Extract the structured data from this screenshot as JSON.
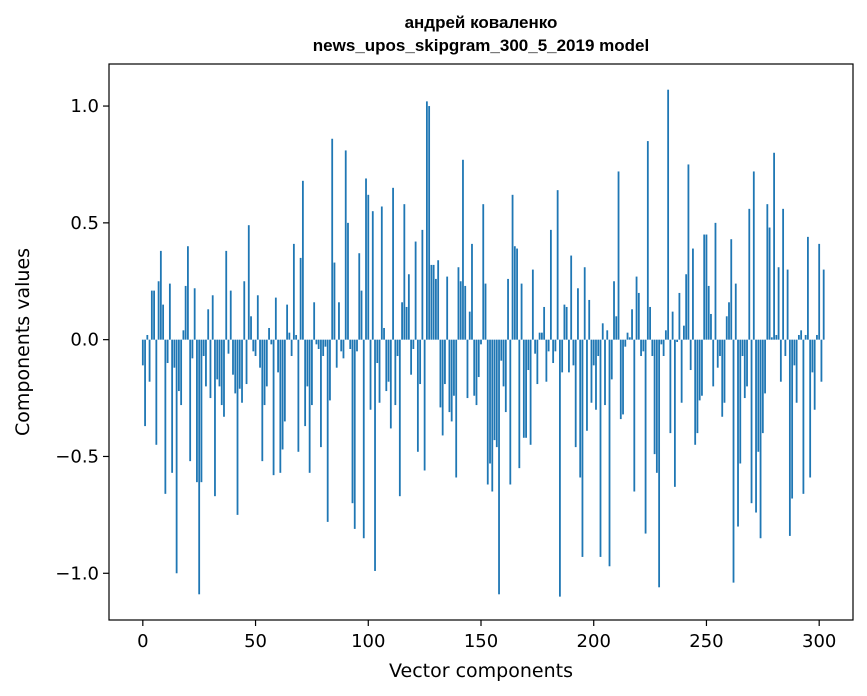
{
  "chart_data": {
    "type": "bar",
    "title_line1": "андрей коваленко",
    "title_line2": "news_upos_skipgram_300_5_2019 model",
    "xlabel": "Vector components",
    "ylabel": "Components values",
    "xlim": [
      -15,
      315
    ],
    "ylim": [
      -1.2,
      1.18
    ],
    "xticks": [
      0,
      50,
      100,
      150,
      200,
      250,
      300
    ],
    "xtick_labels": [
      "0",
      "50",
      "100",
      "150",
      "200",
      "250",
      "300"
    ],
    "yticks": [
      -1.0,
      -0.5,
      0.0,
      0.5,
      1.0
    ],
    "ytick_labels": [
      "−1.0",
      "−0.5",
      "0.0",
      "0.5",
      "1.0"
    ],
    "bar_color": "#1f77b4",
    "values": [
      -0.11,
      -0.37,
      0.02,
      -0.18,
      0.21,
      0.21,
      -0.45,
      0.25,
      0.38,
      0.15,
      -0.66,
      -0.1,
      0.24,
      -0.57,
      -0.12,
      -1.0,
      -0.22,
      -0.28,
      0.04,
      0.23,
      0.4,
      -0.52,
      -0.08,
      0.22,
      -0.61,
      -1.09,
      -0.61,
      -0.07,
      -0.2,
      0.13,
      -0.25,
      0.19,
      -0.67,
      -0.17,
      -0.2,
      -0.28,
      -0.33,
      0.38,
      -0.06,
      0.21,
      -0.15,
      -0.23,
      -0.75,
      -0.21,
      -0.27,
      0.25,
      -0.19,
      0.49,
      0.1,
      -0.05,
      -0.07,
      0.19,
      -0.12,
      -0.52,
      -0.28,
      -0.2,
      0.05,
      -0.02,
      -0.58,
      0.18,
      -0.14,
      -0.57,
      -0.47,
      -0.35,
      0.15,
      0.03,
      -0.07,
      0.41,
      0.02,
      -0.48,
      0.35,
      0.68,
      -0.37,
      -0.2,
      -0.57,
      -0.28,
      0.16,
      -0.02,
      -0.04,
      -0.46,
      -0.07,
      -0.03,
      -0.78,
      -0.26,
      0.86,
      0.33,
      -0.12,
      0.16,
      -0.05,
      -0.08,
      0.81,
      0.5,
      -0.04,
      -0.7,
      -0.81,
      -0.05,
      0.37,
      0.21,
      -0.85,
      0.69,
      0.62,
      -0.3,
      0.55,
      -0.99,
      -0.1,
      -0.27,
      0.57,
      0.05,
      -0.22,
      -0.18,
      -0.38,
      0.65,
      -0.28,
      -0.07,
      -0.67,
      0.16,
      0.58,
      0.14,
      0.28,
      -0.15,
      -0.04,
      0.42,
      -0.48,
      -0.19,
      0.47,
      -0.56,
      1.02,
      1.0,
      0.32,
      0.32,
      0.26,
      0.34,
      -0.29,
      -0.41,
      -0.19,
      0.27,
      -0.31,
      -0.35,
      -0.24,
      -0.59,
      0.31,
      0.25,
      0.77,
      0.23,
      -0.25,
      0.12,
      0.41,
      -0.24,
      -0.28,
      -0.16,
      -0.02,
      0.58,
      0.24,
      -0.62,
      -0.53,
      -0.65,
      -0.43,
      -0.46,
      -1.09,
      -0.09,
      -0.2,
      -0.31,
      0.26,
      -0.62,
      0.62,
      0.4,
      0.39,
      -0.55,
      0.24,
      -0.42,
      -0.42,
      -0.13,
      -0.45,
      0.3,
      -0.06,
      -0.19,
      0.03,
      0.03,
      0.14,
      -0.18,
      -0.05,
      0.47,
      -0.1,
      -0.05,
      0.64,
      -1.1,
      -0.14,
      0.15,
      0.14,
      -0.14,
      0.36,
      -0.11,
      -0.46,
      0.22,
      -0.59,
      -0.93,
      0.31,
      -0.39,
      0.17,
      -0.27,
      -0.11,
      -0.3,
      -0.07,
      -0.93,
      0.07,
      -0.28,
      0.04,
      -0.97,
      -0.17,
      0.25,
      0.1,
      0.72,
      -0.34,
      -0.32,
      -0.03,
      0.03,
      0.01,
      0.13,
      -0.65,
      0.27,
      0.2,
      -0.07,
      -0.05,
      -0.83,
      0.85,
      0.14,
      -0.07,
      -0.49,
      -0.57,
      -1.06,
      -0.02,
      -0.07,
      0.04,
      1.07,
      -0.4,
      0.12,
      -0.63,
      -0.01,
      0.2,
      -0.27,
      0.06,
      0.28,
      0.75,
      -0.13,
      0.39,
      -0.45,
      -0.4,
      -0.26,
      -0.24,
      0.45,
      0.45,
      0.23,
      0.11,
      -0.2,
      0.5,
      -0.12,
      -0.07,
      -0.33,
      -0.27,
      0.1,
      0.16,
      0.43,
      -1.04,
      0.24,
      -0.8,
      -0.53,
      -0.07,
      -0.25,
      -0.2,
      0.56,
      -0.7,
      0.72,
      -0.74,
      -0.48,
      -0.85,
      -0.4,
      -0.23,
      0.58,
      0.48,
      0.01,
      0.8,
      0.02,
      0.31,
      -0.18,
      0.56,
      -0.07,
      0.3,
      -0.84,
      -0.68,
      -0.11,
      -0.27,
      0.02,
      0.04,
      -0.66,
      0.02,
      0.44,
      -0.59,
      -0.14,
      -0.3,
      0.02,
      0.41,
      -0.18,
      0.3
    ]
  }
}
